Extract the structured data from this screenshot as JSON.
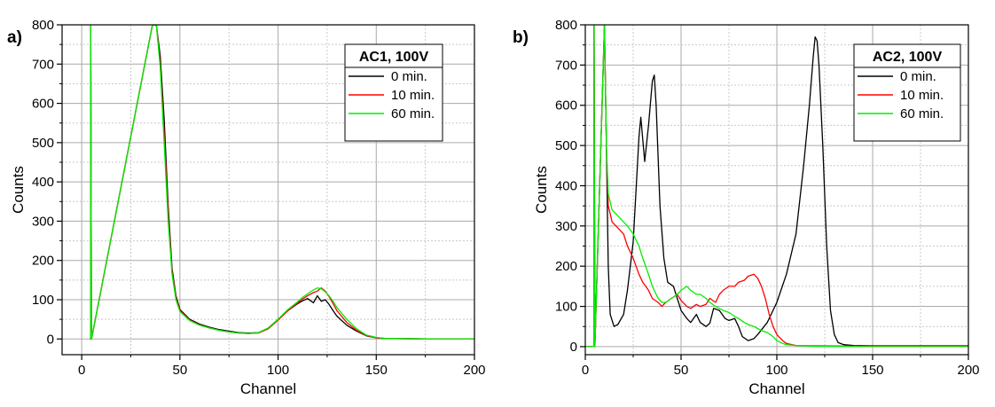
{
  "chart_data": [
    {
      "type": "line",
      "panel_label": "a)",
      "legend_title": "AC1, 100V",
      "xlabel": "Channel",
      "ylabel": "Counts",
      "xlim": [
        -10,
        200
      ],
      "ylim": [
        -40,
        800
      ],
      "xticks": [
        0,
        50,
        100,
        150,
        200
      ],
      "yticks": [
        0,
        100,
        200,
        300,
        400,
        500,
        600,
        700,
        800
      ],
      "grid": true,
      "legend_position": "top-right",
      "series": [
        {
          "name": "0 min.",
          "color": "#000000",
          "x": [
            4,
            4.6,
            4.6,
            5,
            36,
            38,
            40,
            42,
            44,
            46,
            48,
            50,
            55,
            60,
            65,
            70,
            75,
            80,
            85,
            90,
            95,
            100,
            105,
            110,
            112,
            115,
            118,
            120,
            122,
            124,
            126,
            128,
            130,
            135,
            140,
            145,
            150,
            155,
            160,
            180,
            200
          ],
          "y": [
            0,
            0,
            800,
            0,
            800,
            800,
            720,
            560,
            340,
            180,
            110,
            75,
            50,
            38,
            30,
            24,
            20,
            16,
            15,
            16,
            28,
            50,
            72,
            90,
            96,
            103,
            92,
            110,
            96,
            100,
            88,
            72,
            58,
            35,
            20,
            8,
            3,
            1,
            1,
            0,
            0
          ]
        },
        {
          "name": "10 min.",
          "color": "#ff0000",
          "x": [
            4,
            4.6,
            4.6,
            5,
            36,
            38,
            40,
            42,
            44,
            46,
            48,
            50,
            55,
            60,
            65,
            70,
            75,
            80,
            85,
            90,
            95,
            100,
            105,
            110,
            112,
            115,
            118,
            120,
            122,
            124,
            126,
            128,
            130,
            135,
            140,
            145,
            150,
            155,
            160,
            180,
            200
          ],
          "y": [
            0,
            0,
            800,
            0,
            800,
            800,
            700,
            520,
            320,
            170,
            105,
            72,
            48,
            36,
            28,
            22,
            18,
            15,
            14,
            15,
            26,
            48,
            72,
            92,
            100,
            110,
            118,
            122,
            130,
            122,
            108,
            90,
            72,
            42,
            22,
            9,
            3,
            1,
            1,
            0,
            0
          ]
        },
        {
          "name": "60 min.",
          "color": "#00ee00",
          "x": [
            4,
            4.6,
            4.6,
            5,
            36,
            38,
            40,
            42,
            44,
            46,
            48,
            50,
            55,
            60,
            65,
            70,
            75,
            80,
            85,
            90,
            95,
            100,
            105,
            110,
            112,
            115,
            118,
            120,
            122,
            124,
            126,
            128,
            130,
            135,
            140,
            145,
            150,
            155,
            160,
            180,
            200
          ],
          "y": [
            0,
            0,
            800,
            0,
            800,
            800,
            690,
            500,
            300,
            165,
            100,
            70,
            47,
            35,
            28,
            22,
            18,
            15,
            14,
            16,
            28,
            50,
            75,
            95,
            104,
            115,
            125,
            130,
            128,
            120,
            110,
            96,
            80,
            50,
            26,
            10,
            4,
            1,
            1,
            0,
            0
          ]
        }
      ]
    },
    {
      "type": "line",
      "panel_label": "b)",
      "legend_title": "AC2, 100V",
      "xlabel": "Channel",
      "ylabel": "Counts",
      "xlim": [
        0,
        200
      ],
      "ylim": [
        -20,
        800
      ],
      "xticks": [
        0,
        50,
        100,
        150,
        200
      ],
      "yticks": [
        0,
        100,
        200,
        300,
        400,
        500,
        600,
        700,
        800
      ],
      "grid": true,
      "legend_position": "top-right",
      "series": [
        {
          "name": "0 min.",
          "color": "#000000",
          "x": [
            0,
            4,
            4.6,
            4.6,
            5,
            10,
            11,
            12,
            13,
            15,
            17,
            20,
            22,
            25,
            28,
            29,
            31,
            33,
            35,
            36,
            37,
            39,
            41,
            43,
            46,
            48,
            50,
            53,
            55,
            58,
            60,
            63,
            65,
            67,
            70,
            73,
            75,
            78,
            80,
            82,
            85,
            88,
            90,
            95,
            100,
            105,
            110,
            114,
            117,
            119,
            120,
            121,
            122,
            124,
            126,
            128,
            130,
            132,
            135,
            140,
            150,
            160,
            200
          ],
          "y": [
            0,
            0,
            0,
            800,
            0,
            800,
            500,
            200,
            80,
            50,
            55,
            80,
            140,
            260,
            520,
            570,
            460,
            550,
            660,
            675,
            600,
            350,
            220,
            160,
            150,
            120,
            90,
            70,
            60,
            80,
            60,
            50,
            58,
            95,
            90,
            70,
            65,
            70,
            50,
            25,
            15,
            20,
            30,
            60,
            110,
            180,
            280,
            450,
            600,
            720,
            770,
            760,
            700,
            500,
            250,
            90,
            30,
            10,
            5,
            3,
            2,
            2,
            2
          ]
        },
        {
          "name": "10 min.",
          "color": "#ff0000",
          "x": [
            0,
            4,
            4.6,
            4.6,
            5,
            10,
            11,
            12,
            13,
            14,
            16,
            18,
            20,
            22,
            25,
            28,
            30,
            33,
            35,
            38,
            40,
            42,
            45,
            48,
            50,
            53,
            55,
            58,
            60,
            63,
            65,
            68,
            70,
            72,
            75,
            78,
            80,
            83,
            85,
            88,
            90,
            92,
            94,
            96,
            98,
            100,
            103,
            105,
            110,
            120,
            150,
            200
          ],
          "y": [
            0,
            0,
            0,
            800,
            0,
            800,
            500,
            350,
            330,
            310,
            300,
            290,
            280,
            250,
            220,
            180,
            160,
            140,
            120,
            110,
            100,
            110,
            120,
            130,
            115,
            100,
            95,
            105,
            100,
            105,
            120,
            110,
            130,
            140,
            150,
            150,
            160,
            165,
            175,
            180,
            170,
            150,
            120,
            80,
            50,
            30,
            15,
            8,
            3,
            2,
            1,
            1
          ]
        },
        {
          "name": "60 min.",
          "color": "#00ee00",
          "x": [
            0,
            4,
            4.6,
            4.6,
            5,
            10,
            11,
            12,
            13,
            14,
            16,
            18,
            20,
            22,
            25,
            28,
            30,
            33,
            35,
            38,
            40,
            42,
            45,
            48,
            50,
            53,
            55,
            58,
            60,
            63,
            65,
            68,
            70,
            72,
            75,
            78,
            80,
            83,
            85,
            88,
            90,
            92,
            95,
            98,
            100,
            103,
            105,
            110,
            120,
            150,
            200
          ],
          "y": [
            0,
            0,
            0,
            800,
            0,
            800,
            500,
            380,
            360,
            340,
            330,
            320,
            310,
            300,
            280,
            250,
            220,
            180,
            150,
            120,
            110,
            110,
            120,
            130,
            140,
            150,
            140,
            130,
            130,
            120,
            110,
            100,
            95,
            90,
            85,
            75,
            70,
            60,
            55,
            50,
            45,
            40,
            35,
            25,
            15,
            8,
            5,
            3,
            1,
            0,
            0
          ]
        }
      ]
    }
  ]
}
